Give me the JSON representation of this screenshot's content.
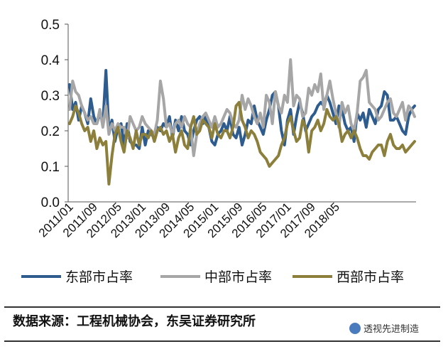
{
  "chart_data": {
    "type": "line",
    "y_axis": {
      "min": 0.0,
      "max": 0.5,
      "ticks": [
        "0.0",
        "0.1",
        "0.2",
        "0.3",
        "0.4",
        "0.5"
      ]
    },
    "x_ticks": [
      "2011/01",
      "2011/09",
      "2012/05",
      "2013/01",
      "2013/09",
      "2014/05",
      "2015/01",
      "2015/09",
      "2016/05",
      "2017/01",
      "2017/09",
      "2018/05"
    ],
    "series": [
      {
        "name": "东部市占率",
        "color": "#2e5c8f",
        "values": [
          0.33,
          0.26,
          0.28,
          0.23,
          0.27,
          0.25,
          0.22,
          0.29,
          0.24,
          0.22,
          0.25,
          0.22,
          0.37,
          0.2,
          0.23,
          0.17,
          0.21,
          0.22,
          0.16,
          0.22,
          0.17,
          0.16,
          0.16,
          0.15,
          0.21,
          0.16,
          0.2,
          0.19,
          0.18,
          0.21,
          0.2,
          0.22,
          0.21,
          0.24,
          0.18,
          0.23,
          0.2,
          0.24,
          0.2,
          0.19,
          0.16,
          0.2,
          0.23,
          0.24,
          0.22,
          0.24,
          0.21,
          0.17,
          0.16,
          0.19,
          0.2,
          0.22,
          0.2,
          0.24,
          0.19,
          0.18,
          0.21,
          0.16,
          0.19,
          0.23,
          0.22,
          0.27,
          0.23,
          0.21,
          0.19,
          0.23,
          0.26,
          0.3,
          0.31,
          0.27,
          0.2,
          0.16,
          0.23,
          0.26,
          0.19,
          0.24,
          0.28,
          0.25,
          0.2,
          0.22,
          0.24,
          0.25,
          0.27,
          0.28,
          0.27,
          0.3,
          0.28,
          0.25,
          0.22,
          0.27,
          0.26,
          0.22,
          0.2,
          0.21,
          0.17,
          0.25,
          0.23,
          0.25,
          0.21,
          0.26,
          0.24,
          0.22,
          0.26,
          0.27,
          0.31,
          0.3,
          0.23,
          0.23,
          0.24,
          0.22,
          0.2,
          0.19,
          0.24,
          0.26,
          0.27
        ]
      },
      {
        "name": "中部市占率",
        "color": "#a6a6a6",
        "values": [
          0.26,
          0.34,
          0.31,
          0.3,
          0.27,
          0.25,
          0.23,
          0.24,
          0.22,
          0.22,
          0.26,
          0.21,
          0.27,
          0.19,
          0.22,
          0.2,
          0.22,
          0.21,
          0.21,
          0.18,
          0.24,
          0.22,
          0.2,
          0.21,
          0.24,
          0.22,
          0.21,
          0.2,
          0.19,
          0.23,
          0.34,
          0.29,
          0.21,
          0.22,
          0.19,
          0.22,
          0.23,
          0.21,
          0.24,
          0.22,
          0.21,
          0.13,
          0.19,
          0.22,
          0.24,
          0.25,
          0.23,
          0.21,
          0.24,
          0.21,
          0.22,
          0.24,
          0.26,
          0.25,
          0.22,
          0.21,
          0.23,
          0.3,
          0.26,
          0.29,
          0.27,
          0.24,
          0.22,
          0.25,
          0.21,
          0.3,
          0.28,
          0.22,
          0.31,
          0.27,
          0.25,
          0.3,
          0.28,
          0.4,
          0.27,
          0.3,
          0.29,
          0.24,
          0.25,
          0.32,
          0.3,
          0.33,
          0.31,
          0.36,
          0.26,
          0.3,
          0.34,
          0.29,
          0.25,
          0.21,
          0.28,
          0.25,
          0.27,
          0.22,
          0.2,
          0.25,
          0.34,
          0.35,
          0.37,
          0.28,
          0.27,
          0.26,
          0.23,
          0.24,
          0.26,
          0.28,
          0.29,
          0.25,
          0.24,
          0.26,
          0.28,
          0.23,
          0.27,
          0.26,
          0.24
        ]
      },
      {
        "name": "西部市占率",
        "color": "#8b7f3b",
        "values": [
          0.22,
          0.24,
          0.27,
          0.25,
          0.22,
          0.2,
          0.21,
          0.17,
          0.2,
          0.15,
          0.18,
          0.16,
          0.17,
          0.05,
          0.13,
          0.19,
          0.21,
          0.17,
          0.14,
          0.2,
          0.18,
          0.15,
          0.2,
          0.16,
          0.19,
          0.19,
          0.18,
          0.2,
          0.17,
          0.2,
          0.21,
          0.19,
          0.2,
          0.17,
          0.19,
          0.14,
          0.18,
          0.2,
          0.16,
          0.15,
          0.21,
          0.24,
          0.19,
          0.2,
          0.23,
          0.22,
          0.21,
          0.18,
          0.22,
          0.19,
          0.18,
          0.2,
          0.2,
          0.18,
          0.21,
          0.27,
          0.28,
          0.23,
          0.21,
          0.18,
          0.2,
          0.19,
          0.17,
          0.14,
          0.13,
          0.12,
          0.1,
          0.11,
          0.12,
          0.13,
          0.16,
          0.18,
          0.22,
          0.24,
          0.2,
          0.17,
          0.18,
          0.23,
          0.21,
          0.14,
          0.2,
          0.21,
          0.23,
          0.2,
          0.22,
          0.26,
          0.24,
          0.23,
          0.24,
          0.22,
          0.17,
          0.19,
          0.2,
          0.18,
          0.2,
          0.18,
          0.15,
          0.13,
          0.13,
          0.12,
          0.14,
          0.15,
          0.16,
          0.16,
          0.13,
          0.17,
          0.19,
          0.16,
          0.15,
          0.15,
          0.16,
          0.14,
          0.15,
          0.16,
          0.17
        ]
      }
    ],
    "legend_position": "bottom",
    "grid": false
  },
  "footer": {
    "source": "数据来源：工程机械协会，东吴证券研究所",
    "watermark": "透视先进制造"
  }
}
